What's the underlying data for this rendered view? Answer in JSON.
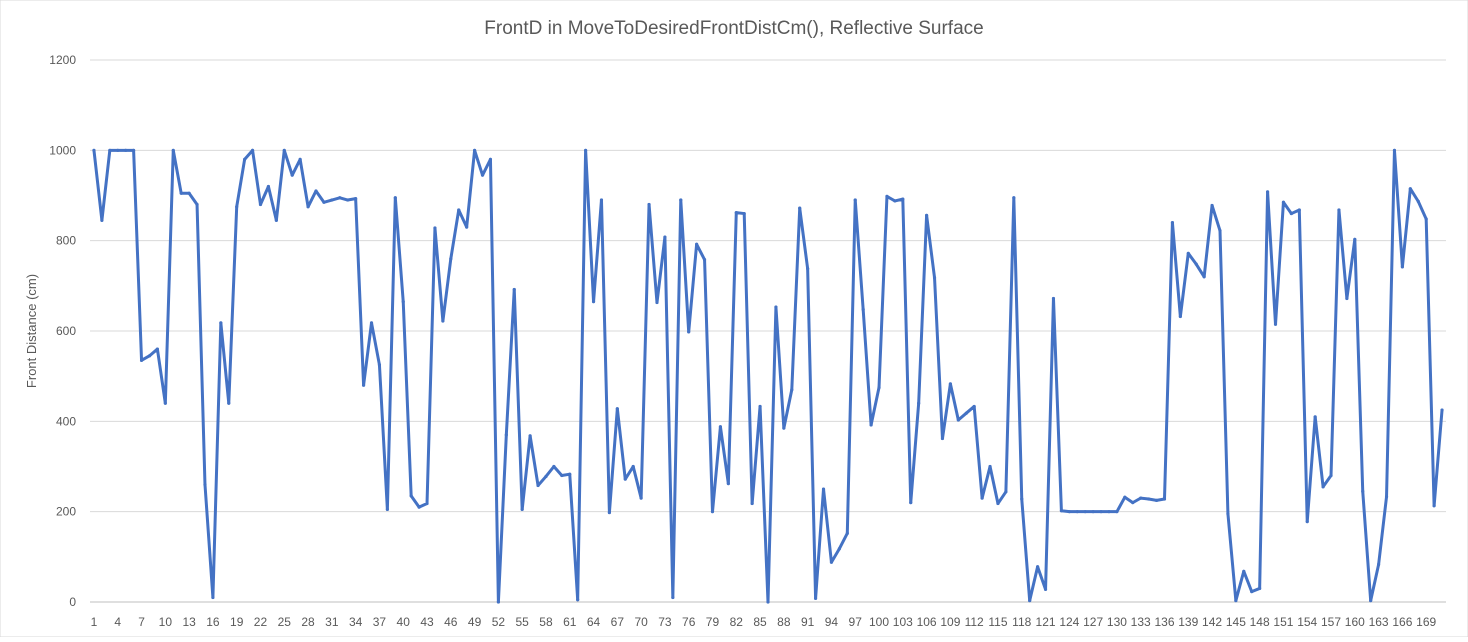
{
  "chart_data": {
    "type": "line",
    "title": "FrontD in MoveToDesiredFrontDistCm(), Reflective Surface",
    "xlabel": "",
    "ylabel": "Front Distance (cm)",
    "ylim": [
      0,
      1200
    ],
    "yticks": [
      0,
      200,
      400,
      600,
      800,
      1000,
      1200
    ],
    "grid": true,
    "legend": "none",
    "x_tick_every": 3,
    "line_color": "#4472C4",
    "x": [
      1,
      2,
      3,
      4,
      5,
      6,
      7,
      8,
      9,
      10,
      11,
      12,
      13,
      14,
      15,
      16,
      17,
      18,
      19,
      20,
      21,
      22,
      23,
      24,
      25,
      26,
      27,
      28,
      29,
      30,
      31,
      32,
      33,
      34,
      35,
      36,
      37,
      38,
      39,
      40,
      41,
      42,
      43,
      44,
      45,
      46,
      47,
      48,
      49,
      50,
      51,
      52,
      53,
      54,
      55,
      56,
      57,
      58,
      59,
      60,
      61,
      62,
      63,
      64,
      65,
      66,
      67,
      68,
      69,
      70,
      71,
      72,
      73,
      74,
      75,
      76,
      77,
      78,
      79,
      80,
      81,
      82,
      83,
      84,
      85,
      86,
      87,
      88,
      89,
      90,
      91,
      92,
      93,
      94,
      95,
      96,
      97,
      98,
      99,
      100,
      101,
      102,
      103,
      104,
      105,
      106,
      107,
      108,
      109,
      110,
      111,
      112,
      113,
      114,
      115,
      116,
      117,
      118,
      119,
      120,
      121,
      122,
      123,
      124,
      125,
      126,
      127,
      128,
      129,
      130,
      131,
      132,
      133,
      134,
      135,
      136,
      137,
      138,
      139,
      140,
      141,
      142,
      143,
      144,
      145,
      146,
      147,
      148,
      149,
      150,
      151,
      152,
      153,
      154,
      155,
      156,
      157,
      158,
      159,
      160,
      161,
      162,
      163,
      164,
      165,
      166,
      167,
      168,
      169,
      170,
      171
    ],
    "series": [
      {
        "values": [
          1000,
          845,
          1000,
          1000,
          1000,
          1000,
          535,
          545,
          560,
          440,
          1000,
          905,
          905,
          880,
          260,
          10,
          618,
          440,
          875,
          980,
          1000,
          880,
          920,
          845,
          1000,
          945,
          980,
          875,
          910,
          885,
          890,
          895,
          890,
          893,
          480,
          618,
          525,
          205,
          895,
          665,
          235,
          210,
          218,
          828,
          622,
          760,
          868,
          830,
          1000,
          945,
          980,
          0,
          370,
          692,
          205,
          368,
          258,
          278,
          300,
          280,
          283,
          5,
          1000,
          665,
          890,
          198,
          428,
          272,
          300,
          230,
          880,
          663,
          808,
          10,
          890,
          598,
          792,
          758,
          200,
          388,
          262,
          862,
          860,
          218,
          433,
          0,
          653,
          385,
          470,
          872,
          738,
          8,
          250,
          88,
          118,
          152,
          890,
          648,
          392,
          475,
          898,
          888,
          892,
          220,
          440,
          856,
          718,
          362,
          483,
          403,
          418,
          433,
          230,
          300,
          218,
          244,
          895,
          228,
          3,
          78,
          28,
          672,
          202,
          200,
          200,
          200,
          200,
          200,
          200,
          200,
          232,
          220,
          230,
          228,
          225,
          228,
          840,
          632,
          772,
          748,
          720,
          878,
          822,
          195,
          3,
          68,
          23,
          30,
          908,
          615,
          885,
          860,
          868,
          178,
          410,
          255,
          280,
          868,
          672,
          803,
          245,
          3,
          83,
          233,
          1000,
          742,
          915,
          887,
          848,
          213,
          425
        ]
      }
    ]
  }
}
